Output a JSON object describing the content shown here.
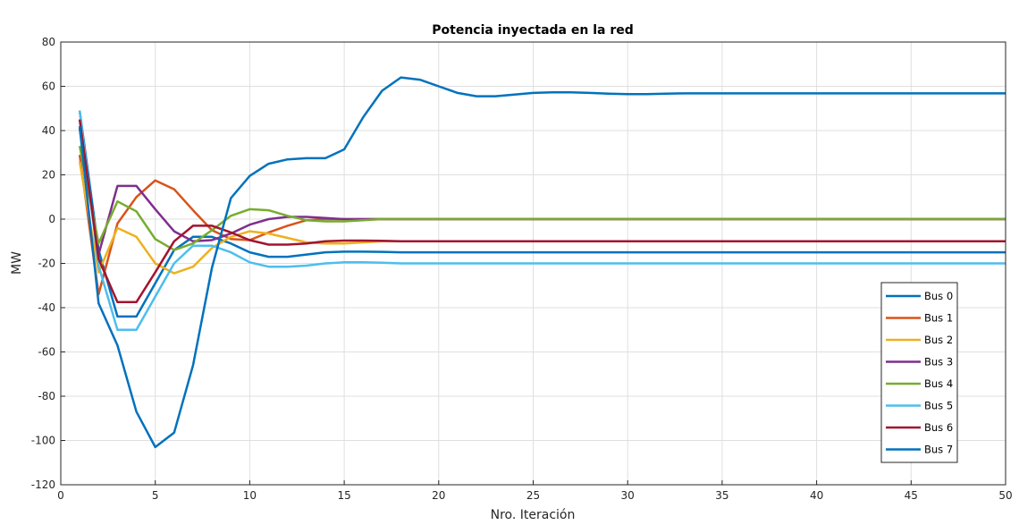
{
  "chart_data": {
    "type": "line",
    "title": "Potencia inyectada en la red",
    "xlabel": "Nro. Iteración",
    "ylabel": "MW",
    "xlim": [
      0,
      50
    ],
    "ylim": [
      -120,
      80
    ],
    "xticks": [
      0,
      5,
      10,
      15,
      20,
      25,
      30,
      35,
      40,
      45,
      50
    ],
    "yticks": [
      80,
      60,
      40,
      20,
      0,
      -20,
      -40,
      -60,
      -80,
      -100,
      -120
    ],
    "grid": true,
    "legend_position": "bottom-right",
    "x": [
      1,
      2,
      3,
      4,
      5,
      6,
      7,
      8,
      9,
      10,
      11,
      12,
      13,
      14,
      15,
      16,
      17,
      18,
      19,
      20,
      21,
      22,
      23,
      24,
      25,
      26,
      27,
      28,
      29,
      30,
      31,
      32,
      33,
      34,
      35,
      36,
      37,
      38,
      39,
      40,
      41,
      42,
      43,
      44,
      45,
      46,
      47,
      48,
      49,
      50
    ],
    "series": [
      {
        "name": "Bus 0",
        "color": "#0072BD",
        "values": [
          49,
          -14,
          -44,
          -44,
          -29,
          -14,
          -8,
          -8,
          -11,
          -15,
          -17,
          -17,
          -16,
          -15,
          -14.7,
          -14.7,
          -14.8,
          -15,
          -15,
          -15,
          -15,
          -15,
          -15,
          -15,
          -15,
          -15,
          -15,
          -15,
          -15,
          -15,
          -15,
          -15,
          -15,
          -15,
          -15,
          -15,
          -15,
          -15,
          -15,
          -15,
          -15,
          -15,
          -15,
          -15,
          -15,
          -15,
          -15,
          -15,
          -15,
          -15
        ]
      },
      {
        "name": "Bus 1",
        "color": "#D95319",
        "values": [
          29,
          -34,
          -2,
          10,
          17.5,
          13.5,
          4,
          -5,
          -9,
          -9.5,
          -6,
          -3,
          -0.5,
          0,
          0,
          0,
          0,
          0,
          0,
          0,
          0,
          0,
          0,
          0,
          0,
          0,
          0,
          0,
          0,
          0,
          0,
          0,
          0,
          0,
          0,
          0,
          0,
          0,
          0,
          0,
          0,
          0,
          0,
          0,
          0,
          0,
          0,
          0,
          0,
          0
        ]
      },
      {
        "name": "Bus 2",
        "color": "#EDB120",
        "values": [
          26,
          -24,
          -4,
          -8,
          -20,
          -24.5,
          -21.5,
          -13,
          -8,
          -5.5,
          -6.5,
          -8.5,
          -10.5,
          -11,
          -11,
          -10.5,
          -10,
          -10,
          -10,
          -10,
          -10,
          -10,
          -10,
          -10,
          -10,
          -10,
          -10,
          -10,
          -10,
          -10,
          -10,
          -10,
          -10,
          -10,
          -10,
          -10,
          -10,
          -10,
          -10,
          -10,
          -10,
          -10,
          -10,
          -10,
          -10,
          -10,
          -10,
          -10,
          -10,
          -10
        ]
      },
      {
        "name": "Bus 3",
        "color": "#7E2F8E",
        "values": [
          41,
          -16,
          15,
          15,
          4.5,
          -5.5,
          -10,
          -9.5,
          -6.5,
          -2.5,
          0,
          1,
          1,
          0.5,
          0,
          0,
          0,
          0,
          0,
          0,
          0,
          0,
          0,
          0,
          0,
          0,
          0,
          0,
          0,
          0,
          0,
          0,
          0,
          0,
          0,
          0,
          0,
          0,
          0,
          0,
          0,
          0,
          0,
          0,
          0,
          0,
          0,
          0,
          0,
          0
        ]
      },
      {
        "name": "Bus 4",
        "color": "#77AC30",
        "values": [
          33,
          -11,
          8,
          3.5,
          -9,
          -14,
          -11,
          -5,
          1.5,
          4.5,
          4,
          1.5,
          -0.5,
          -1,
          -1,
          -0.5,
          0,
          0,
          0,
          0,
          0,
          0,
          0,
          0,
          0,
          0,
          0,
          0,
          0,
          0,
          0,
          0,
          0,
          0,
          0,
          0,
          0,
          0,
          0,
          0,
          0,
          0,
          0,
          0,
          0,
          0,
          0,
          0,
          0,
          0
        ]
      },
      {
        "name": "Bus 5",
        "color": "#4DBEEE",
        "values": [
          49,
          -21,
          -50,
          -50,
          -35,
          -20,
          -12,
          -12,
          -15,
          -19.5,
          -21.5,
          -21.5,
          -21,
          -20,
          -19.5,
          -19.5,
          -19.7,
          -20,
          -20,
          -20,
          -20,
          -20,
          -20,
          -20,
          -20,
          -20,
          -20,
          -20,
          -20,
          -20,
          -20,
          -20,
          -20,
          -20,
          -20,
          -20,
          -20,
          -20,
          -20,
          -20,
          -20,
          -20,
          -20,
          -20,
          -20,
          -20,
          -20,
          -20,
          -20,
          -20
        ]
      },
      {
        "name": "Bus 6",
        "color": "#A2142F",
        "values": [
          45,
          -18,
          -37.5,
          -37.5,
          -24,
          -10,
          -3,
          -3,
          -6,
          -9.5,
          -11.5,
          -11.5,
          -11,
          -10,
          -9.7,
          -9.7,
          -9.8,
          -10,
          -10,
          -10,
          -10,
          -10,
          -10,
          -10,
          -10,
          -10,
          -10,
          -10,
          -10,
          -10,
          -10,
          -10,
          -10,
          -10,
          -10,
          -10,
          -10,
          -10,
          -10,
          -10,
          -10,
          -10,
          -10,
          -10,
          -10,
          -10,
          -10,
          -10,
          -10,
          -10
        ]
      },
      {
        "name": "Bus 7",
        "color": "#0072BD",
        "values": [
          42,
          -38,
          -57,
          -87,
          -103,
          -96.5,
          -66,
          -22,
          9.5,
          19.5,
          25,
          27,
          27.5,
          27.5,
          31.5,
          46,
          58,
          64,
          63,
          60,
          57,
          55.5,
          55.5,
          56.3,
          57,
          57.3,
          57.3,
          57,
          56.7,
          56.5,
          56.5,
          56.7,
          56.8,
          56.8,
          56.8,
          56.8,
          56.8,
          56.8,
          56.8,
          56.8,
          56.8,
          56.8,
          56.8,
          56.8,
          56.8,
          56.8,
          56.8,
          56.8,
          56.8,
          56.8
        ]
      }
    ]
  }
}
